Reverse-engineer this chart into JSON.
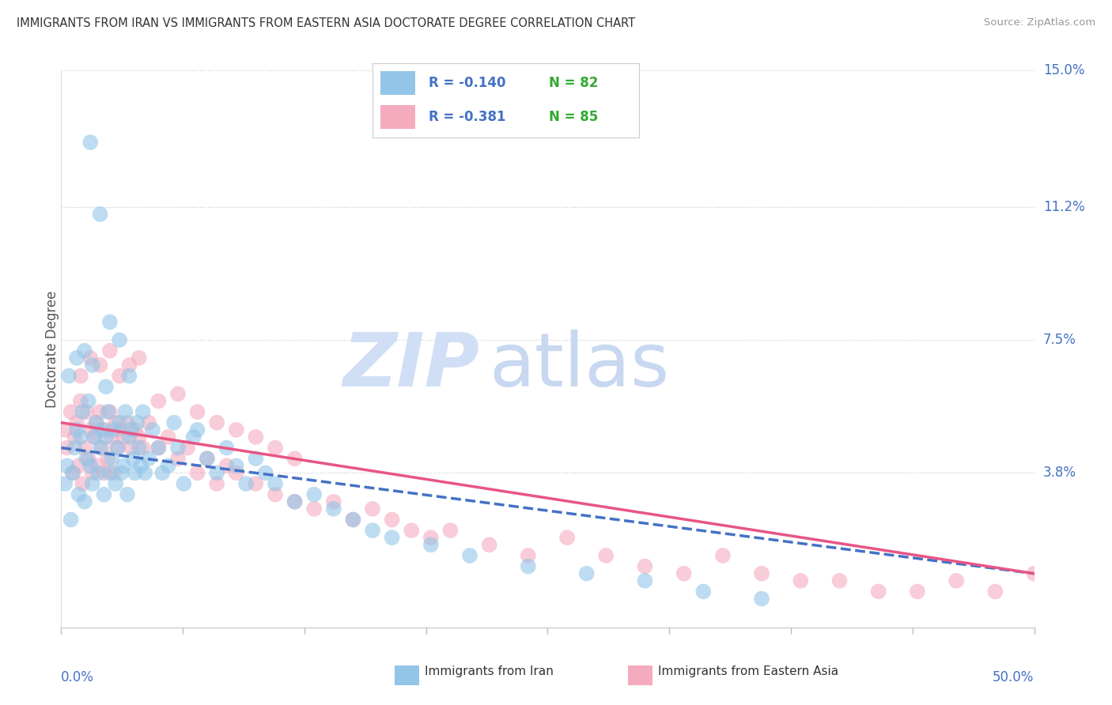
{
  "title": "IMMIGRANTS FROM IRAN VS IMMIGRANTS FROM EASTERN ASIA DOCTORATE DEGREE CORRELATION CHART",
  "source": "Source: ZipAtlas.com",
  "ylabel": "Doctorate Degree",
  "xmin": 0.0,
  "xmax": 50.0,
  "ymin": -0.5,
  "ymax": 15.0,
  "right_yticks": [
    3.8,
    7.5,
    11.2,
    15.0
  ],
  "right_ytick_labels": [
    "3.8%",
    "7.5%",
    "11.2%",
    "15.0%"
  ],
  "legend_r1": "R = -0.140",
  "legend_n1": "N = 82",
  "legend_r2": "R = -0.381",
  "legend_n2": "N = 85",
  "color_iran": "#92C5E8",
  "color_iran_line": "#4472C4",
  "color_asia": "#F4ABBE",
  "color_asia_line": "#E85585",
  "color_r_value": "#4472C4",
  "color_n_value": "#33AA33",
  "watermark_zip": "ZIP",
  "watermark_atlas": "atlas",
  "watermark_color": "#D0DFF5",
  "background_color": "#FFFFFF",
  "iran_x": [
    0.2,
    0.3,
    0.5,
    0.6,
    0.7,
    0.8,
    0.9,
    1.0,
    1.1,
    1.2,
    1.3,
    1.4,
    1.5,
    1.6,
    1.7,
    1.8,
    1.9,
    2.0,
    2.1,
    2.2,
    2.3,
    2.4,
    2.5,
    2.6,
    2.7,
    2.8,
    2.9,
    3.0,
    3.1,
    3.2,
    3.3,
    3.4,
    3.5,
    3.6,
    3.7,
    3.8,
    3.9,
    4.0,
    4.1,
    4.2,
    4.3,
    4.5,
    4.7,
    5.0,
    5.2,
    5.5,
    5.8,
    6.0,
    6.3,
    6.8,
    7.0,
    7.5,
    8.0,
    8.5,
    9.0,
    9.5,
    10.0,
    10.5,
    11.0,
    12.0,
    13.0,
    14.0,
    15.0,
    16.0,
    17.0,
    19.0,
    21.0,
    24.0,
    27.0,
    30.0,
    33.0,
    36.0,
    1.5,
    2.0,
    2.5,
    3.0,
    0.4,
    0.8,
    1.2,
    1.6,
    2.3,
    3.5
  ],
  "iran_y": [
    3.5,
    4.0,
    2.5,
    3.8,
    4.5,
    5.0,
    3.2,
    4.8,
    5.5,
    3.0,
    4.2,
    5.8,
    4.0,
    3.5,
    4.8,
    5.2,
    3.8,
    4.5,
    5.0,
    3.2,
    4.8,
    5.5,
    3.8,
    4.2,
    5.0,
    3.5,
    4.5,
    5.2,
    3.8,
    4.0,
    5.5,
    3.2,
    4.8,
    5.0,
    4.2,
    3.8,
    5.2,
    4.5,
    4.0,
    5.5,
    3.8,
    4.2,
    5.0,
    4.5,
    3.8,
    4.0,
    5.2,
    4.5,
    3.5,
    4.8,
    5.0,
    4.2,
    3.8,
    4.5,
    4.0,
    3.5,
    4.2,
    3.8,
    3.5,
    3.0,
    3.2,
    2.8,
    2.5,
    2.2,
    2.0,
    1.8,
    1.5,
    1.2,
    1.0,
    0.8,
    0.5,
    0.3,
    13.0,
    11.0,
    8.0,
    7.5,
    6.5,
    7.0,
    7.2,
    6.8,
    6.2,
    6.5
  ],
  "asia_x": [
    0.2,
    0.3,
    0.5,
    0.6,
    0.7,
    0.8,
    0.9,
    1.0,
    1.1,
    1.2,
    1.3,
    1.4,
    1.5,
    1.6,
    1.7,
    1.8,
    1.9,
    2.0,
    2.1,
    2.2,
    2.3,
    2.4,
    2.5,
    2.6,
    2.7,
    2.8,
    2.9,
    3.0,
    3.2,
    3.4,
    3.6,
    3.8,
    4.0,
    4.2,
    4.5,
    5.0,
    5.5,
    6.0,
    6.5,
    7.0,
    7.5,
    8.0,
    8.5,
    9.0,
    10.0,
    11.0,
    12.0,
    13.0,
    14.0,
    15.0,
    16.0,
    17.0,
    18.0,
    19.0,
    20.0,
    22.0,
    24.0,
    26.0,
    28.0,
    30.0,
    32.0,
    34.0,
    36.0,
    38.0,
    40.0,
    42.0,
    44.0,
    46.0,
    48.0,
    50.0,
    1.0,
    1.5,
    2.0,
    2.5,
    3.0,
    3.5,
    4.0,
    5.0,
    6.0,
    7.0,
    8.0,
    9.0,
    10.0,
    11.0,
    12.0
  ],
  "asia_y": [
    5.0,
    4.5,
    5.5,
    3.8,
    4.8,
    5.2,
    4.0,
    5.8,
    3.5,
    4.5,
    5.5,
    4.2,
    5.0,
    3.8,
    4.8,
    5.2,
    4.0,
    5.5,
    4.5,
    3.8,
    5.0,
    4.2,
    5.5,
    4.8,
    3.8,
    5.2,
    4.5,
    5.0,
    4.8,
    5.2,
    4.5,
    5.0,
    4.8,
    4.5,
    5.2,
    4.5,
    4.8,
    4.2,
    4.5,
    3.8,
    4.2,
    3.5,
    4.0,
    3.8,
    3.5,
    3.2,
    3.0,
    2.8,
    3.0,
    2.5,
    2.8,
    2.5,
    2.2,
    2.0,
    2.2,
    1.8,
    1.5,
    2.0,
    1.5,
    1.2,
    1.0,
    1.5,
    1.0,
    0.8,
    0.8,
    0.5,
    0.5,
    0.8,
    0.5,
    1.0,
    6.5,
    7.0,
    6.8,
    7.2,
    6.5,
    6.8,
    7.0,
    5.8,
    6.0,
    5.5,
    5.2,
    5.0,
    4.8,
    4.5,
    4.2
  ]
}
